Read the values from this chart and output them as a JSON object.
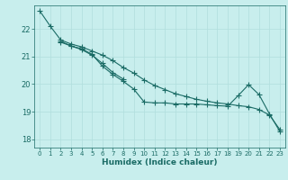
{
  "xlabel": "Humidex (Indice chaleur)",
  "background_color": "#c8eeed",
  "grid_color": "#b0dedd",
  "line_color": "#1a6b65",
  "xlim": [
    -0.5,
    23.5
  ],
  "ylim": [
    17.7,
    22.85
  ],
  "yticks": [
    18,
    19,
    20,
    21,
    22
  ],
  "xticks": [
    0,
    1,
    2,
    3,
    4,
    5,
    6,
    7,
    8,
    9,
    10,
    11,
    12,
    13,
    14,
    15,
    16,
    17,
    18,
    19,
    20,
    21,
    22,
    23
  ],
  "curve1_x": [
    0,
    1,
    2,
    3,
    4,
    5,
    6,
    7,
    8,
    9,
    10,
    11,
    12,
    13,
    14,
    15,
    16,
    17,
    18,
    19,
    20,
    21,
    22,
    23
  ],
  "curve1_y": [
    22.65,
    22.1,
    21.6,
    21.45,
    21.35,
    21.2,
    21.05,
    20.85,
    20.6,
    20.4,
    20.15,
    19.95,
    19.8,
    19.65,
    19.55,
    19.45,
    19.38,
    19.32,
    19.28,
    19.22,
    19.18,
    19.08,
    18.88,
    18.35
  ],
  "curve2_x": [
    2,
    3,
    4,
    5,
    6,
    7,
    8,
    9,
    10,
    11,
    12,
    13,
    14,
    15,
    16,
    17,
    18,
    19,
    20,
    21,
    22,
    23
  ],
  "curve2_y": [
    21.55,
    21.38,
    21.28,
    21.08,
    20.65,
    20.35,
    20.1,
    19.82,
    19.35,
    19.32,
    19.32,
    19.28,
    19.28,
    19.28,
    19.25,
    19.22,
    19.2,
    19.58,
    19.98,
    19.62,
    18.92,
    18.28
  ],
  "curve3_x": [
    2,
    3,
    4,
    5,
    6,
    7,
    8
  ],
  "curve3_y": [
    21.52,
    21.38,
    21.25,
    21.05,
    20.75,
    20.42,
    20.18
  ]
}
